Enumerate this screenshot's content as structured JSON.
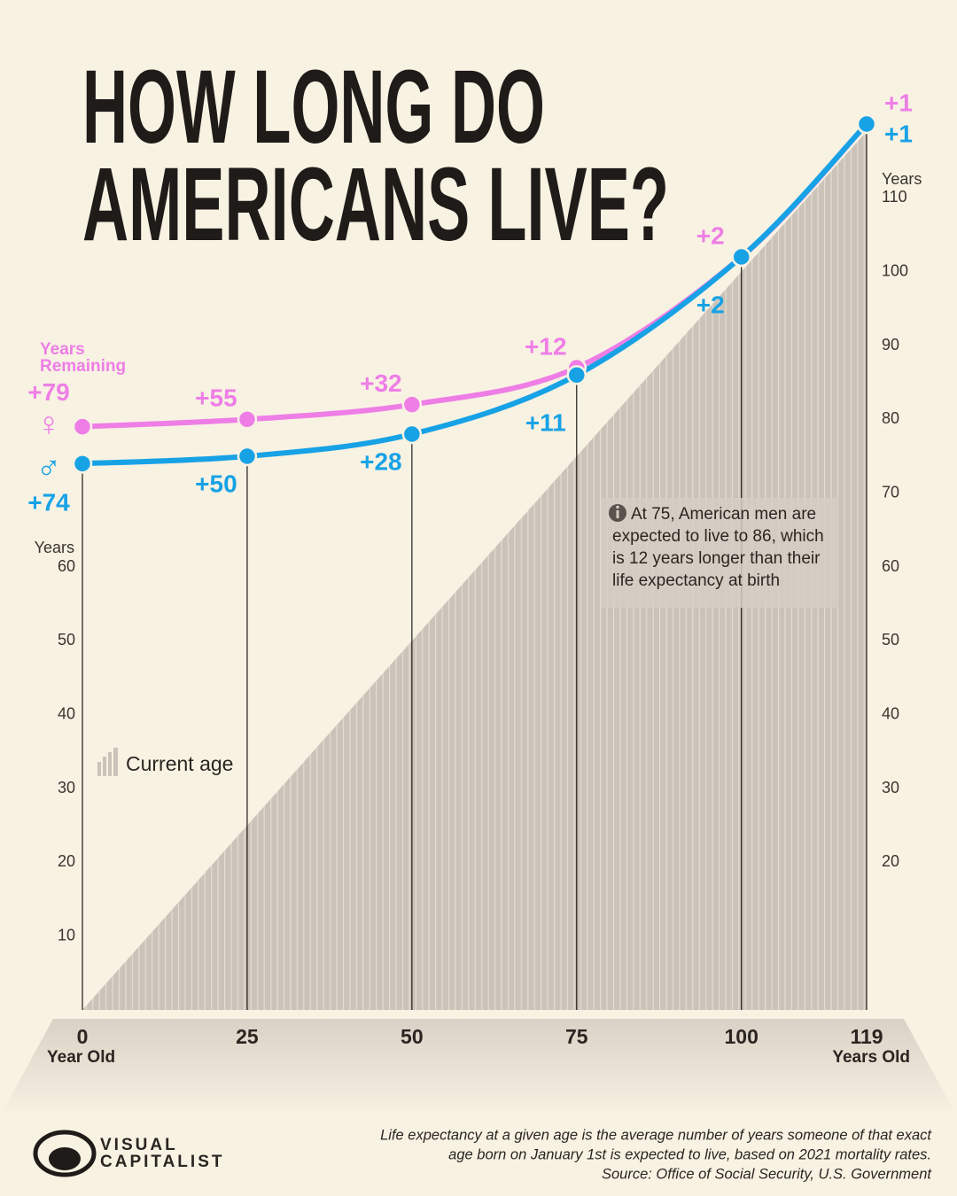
{
  "chart_data": {
    "type": "stacked-line",
    "title": [
      "HOW LONG DO",
      "AMERICANS LIVE?"
    ],
    "x": [
      0,
      25,
      50,
      75,
      100,
      119
    ],
    "xticks": [
      0,
      25,
      50,
      75,
      100,
      119
    ],
    "xlim": [
      0,
      119
    ],
    "xlabel_start": "Year Old",
    "xlabel_end": "Years Old",
    "ylim": [
      0,
      120
    ],
    "ylabel": "Years",
    "yticks": [
      10,
      20,
      30,
      40,
      50,
      60
    ],
    "y2lim": [
      0,
      120
    ],
    "y2label": "Years",
    "y2ticks": [
      20,
      30,
      40,
      50,
      60,
      70,
      80,
      90,
      100,
      110
    ],
    "remaining_label": [
      "Years",
      "Remaining"
    ],
    "series": [
      {
        "name": "Current age",
        "color": "#c9c1b7",
        "values": [
          0,
          25,
          50,
          75,
          100,
          119
        ]
      },
      {
        "name": "♀",
        "color": "#ee7ee6",
        "values": [
          79,
          55,
          32,
          12,
          2,
          1
        ],
        "value_labels": [
          "+79",
          "+55",
          "+32",
          "+12",
          "+2",
          "+1"
        ]
      },
      {
        "name": "♂",
        "color": "#17a2e6",
        "values": [
          74,
          50,
          28,
          11,
          2,
          1
        ],
        "value_labels": [
          "+74",
          "+50",
          "+28",
          "+11",
          "+2",
          "+1"
        ]
      }
    ],
    "annotation": [
      "At 75, American men are",
      "expected to live to 86, which",
      "is 12 years longer than their",
      "life expectancy at birth"
    ],
    "footnote": [
      "Life expectancy at a given age is the average number of years someone of that exact",
      "age born on January 1st is expected to live, based on 2021 mortality rates.",
      "Source: Office of Social Security, U.S. Government"
    ],
    "logo": [
      "VISUAL",
      "CAPITALIST"
    ]
  }
}
